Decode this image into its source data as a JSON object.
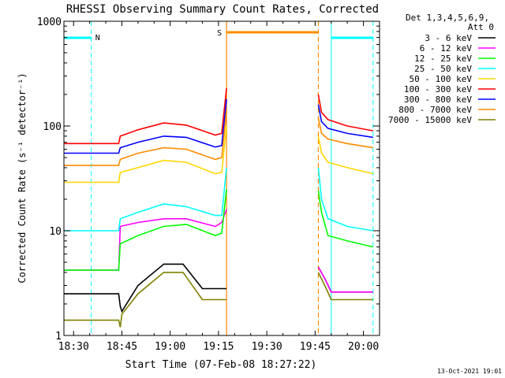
{
  "chart_data": {
    "type": "line",
    "title": "RHESSI Observing Summary Count Rates, Corrected",
    "xlabel": "Start Time (07-Feb-08 18:27:22)",
    "ylabel": "Corrected Count Rate (s⁻¹ detector⁻¹)",
    "y_scale": "log",
    "ylim": [
      1,
      1000
    ],
    "xlim_minutes": [
      -3,
      95
    ],
    "x_ticks": [
      {
        "m": 0,
        "label": "18:30"
      },
      {
        "m": 15,
        "label": "18:45"
      },
      {
        "m": 30,
        "label": "19:00"
      },
      {
        "m": 45,
        "label": "19:15"
      },
      {
        "m": 60,
        "label": "19:30"
      },
      {
        "m": 75,
        "label": "19:45"
      },
      {
        "m": 90,
        "label": "20:00"
      }
    ],
    "y_ticks": [
      {
        "v": 1,
        "label": "1"
      },
      {
        "v": 10,
        "label": "10"
      },
      {
        "v": 100,
        "label": "100"
      },
      {
        "v": 1000,
        "label": "1000"
      }
    ],
    "legend": {
      "placement": "right",
      "header": "Det 1,3,4,5,6,9,",
      "attenuator": "Att 0"
    },
    "annotations": {
      "night_label": "N",
      "saa_label": "S",
      "night_segments": [
        [
          -3,
          5.5
        ],
        [
          80,
          93
        ]
      ],
      "night_markers": [
        -3,
        5.5,
        80,
        93
      ],
      "saa_segment": [
        47.5,
        76
      ],
      "saa_markers": [
        47.5,
        76
      ],
      "colors": {
        "night": "#00ffff",
        "saa": "#ff8c00"
      }
    },
    "segments": [
      [
        -3,
        47.5
      ],
      [
        76,
        93
      ]
    ],
    "series": [
      {
        "name": "3 - 6 keV",
        "color": "#000000",
        "seg1": [
          [
            -3,
            2.5
          ],
          [
            14,
            2.5
          ],
          [
            14.5,
            1.9
          ],
          [
            15,
            1.7
          ],
          [
            20,
            3.0
          ],
          [
            28,
            4.8
          ],
          [
            34,
            4.8
          ],
          [
            40,
            2.8
          ],
          [
            47.5,
            2.8
          ]
        ],
        "seg2": [
          [
            76,
            4.5
          ],
          [
            78,
            3.5
          ],
          [
            80,
            2.6
          ],
          [
            85,
            2.6
          ],
          [
            93,
            2.6
          ]
        ]
      },
      {
        "name": "6 - 12 keV",
        "color": "#ff00ff",
        "seg1": [
          [
            -3,
            4.2
          ],
          [
            14,
            4.2
          ],
          [
            14.5,
            11
          ],
          [
            20,
            12
          ],
          [
            28,
            13
          ],
          [
            35,
            13
          ],
          [
            44,
            11
          ],
          [
            46,
            12
          ],
          [
            47.5,
            16
          ]
        ],
        "seg2": [
          [
            76,
            4.5
          ],
          [
            78,
            3.5
          ],
          [
            80,
            2.6
          ],
          [
            85,
            2.6
          ],
          [
            93,
            2.6
          ]
        ]
      },
      {
        "name": "12 - 25 keV",
        "color": "#00ff00",
        "seg1": [
          [
            -3,
            4.2
          ],
          [
            14,
            4.2
          ],
          [
            14.5,
            7.5
          ],
          [
            20,
            9
          ],
          [
            28,
            11
          ],
          [
            35,
            11.5
          ],
          [
            44,
            9
          ],
          [
            46,
            9.5
          ],
          [
            47.5,
            25
          ]
        ],
        "seg2": [
          [
            76,
            24
          ],
          [
            77,
            15
          ],
          [
            79,
            9
          ],
          [
            85,
            8
          ],
          [
            93,
            7
          ]
        ]
      },
      {
        "name": "25 - 50 keV",
        "color": "#00ffff",
        "seg1": [
          [
            -3,
            10
          ],
          [
            14,
            10
          ],
          [
            14.5,
            13
          ],
          [
            20,
            15
          ],
          [
            28,
            18
          ],
          [
            35,
            17
          ],
          [
            44,
            14
          ],
          [
            46,
            14
          ],
          [
            47.5,
            40
          ]
        ],
        "seg2": [
          [
            76,
            40
          ],
          [
            77,
            20
          ],
          [
            79,
            13
          ],
          [
            85,
            11
          ],
          [
            93,
            10
          ]
        ]
      },
      {
        "name": "50 - 100 keV",
        "color": "#ffd700",
        "seg1": [
          [
            -3,
            29
          ],
          [
            14,
            29
          ],
          [
            14.5,
            36
          ],
          [
            20,
            40
          ],
          [
            28,
            47
          ],
          [
            35,
            45
          ],
          [
            44,
            35
          ],
          [
            46,
            36
          ],
          [
            47.5,
            100
          ]
        ],
        "seg2": [
          [
            76,
            80
          ],
          [
            77,
            55
          ],
          [
            79,
            45
          ],
          [
            85,
            40
          ],
          [
            93,
            35
          ]
        ]
      },
      {
        "name": "100 - 300 keV",
        "color": "#ff0000",
        "seg1": [
          [
            -3,
            68
          ],
          [
            14,
            68
          ],
          [
            14.5,
            80
          ],
          [
            20,
            92
          ],
          [
            28,
            107
          ],
          [
            35,
            102
          ],
          [
            44,
            82
          ],
          [
            46,
            85
          ],
          [
            47.5,
            230
          ]
        ],
        "seg2": [
          [
            76,
            200
          ],
          [
            77,
            135
          ],
          [
            79,
            115
          ],
          [
            85,
            100
          ],
          [
            93,
            90
          ]
        ]
      },
      {
        "name": "300 - 800 keV",
        "color": "#0000ff",
        "seg1": [
          [
            -3,
            55
          ],
          [
            14,
            55
          ],
          [
            14.5,
            62
          ],
          [
            20,
            70
          ],
          [
            28,
            80
          ],
          [
            35,
            78
          ],
          [
            44,
            63
          ],
          [
            46,
            65
          ],
          [
            47.5,
            180
          ]
        ],
        "seg2": [
          [
            76,
            160
          ],
          [
            77,
            110
          ],
          [
            79,
            95
          ],
          [
            85,
            85
          ],
          [
            93,
            78
          ]
        ]
      },
      {
        "name": "800 - 7000 keV",
        "color": "#ff8c00",
        "seg1": [
          [
            -3,
            42
          ],
          [
            14,
            42
          ],
          [
            14.5,
            48
          ],
          [
            20,
            55
          ],
          [
            28,
            62
          ],
          [
            35,
            60
          ],
          [
            44,
            48
          ],
          [
            46,
            50
          ],
          [
            47.5,
            140
          ]
        ],
        "seg2": [
          [
            76,
            120
          ],
          [
            77,
            85
          ],
          [
            79,
            75
          ],
          [
            85,
            68
          ],
          [
            93,
            62
          ]
        ]
      },
      {
        "name": "7000 - 15000 keV",
        "color": "#808000",
        "seg1": [
          [
            -3,
            1.4
          ],
          [
            14,
            1.4
          ],
          [
            14.5,
            1.2
          ],
          [
            15,
            1.6
          ],
          [
            20,
            2.5
          ],
          [
            28,
            4
          ],
          [
            34,
            4
          ],
          [
            40,
            2.2
          ],
          [
            47.5,
            2.2
          ]
        ],
        "seg2": [
          [
            76,
            4
          ],
          [
            78,
            3
          ],
          [
            80,
            2.2
          ],
          [
            85,
            2.2
          ],
          [
            93,
            2.2
          ]
        ]
      }
    ],
    "stamp": "13-Oct-2021 19:01"
  }
}
